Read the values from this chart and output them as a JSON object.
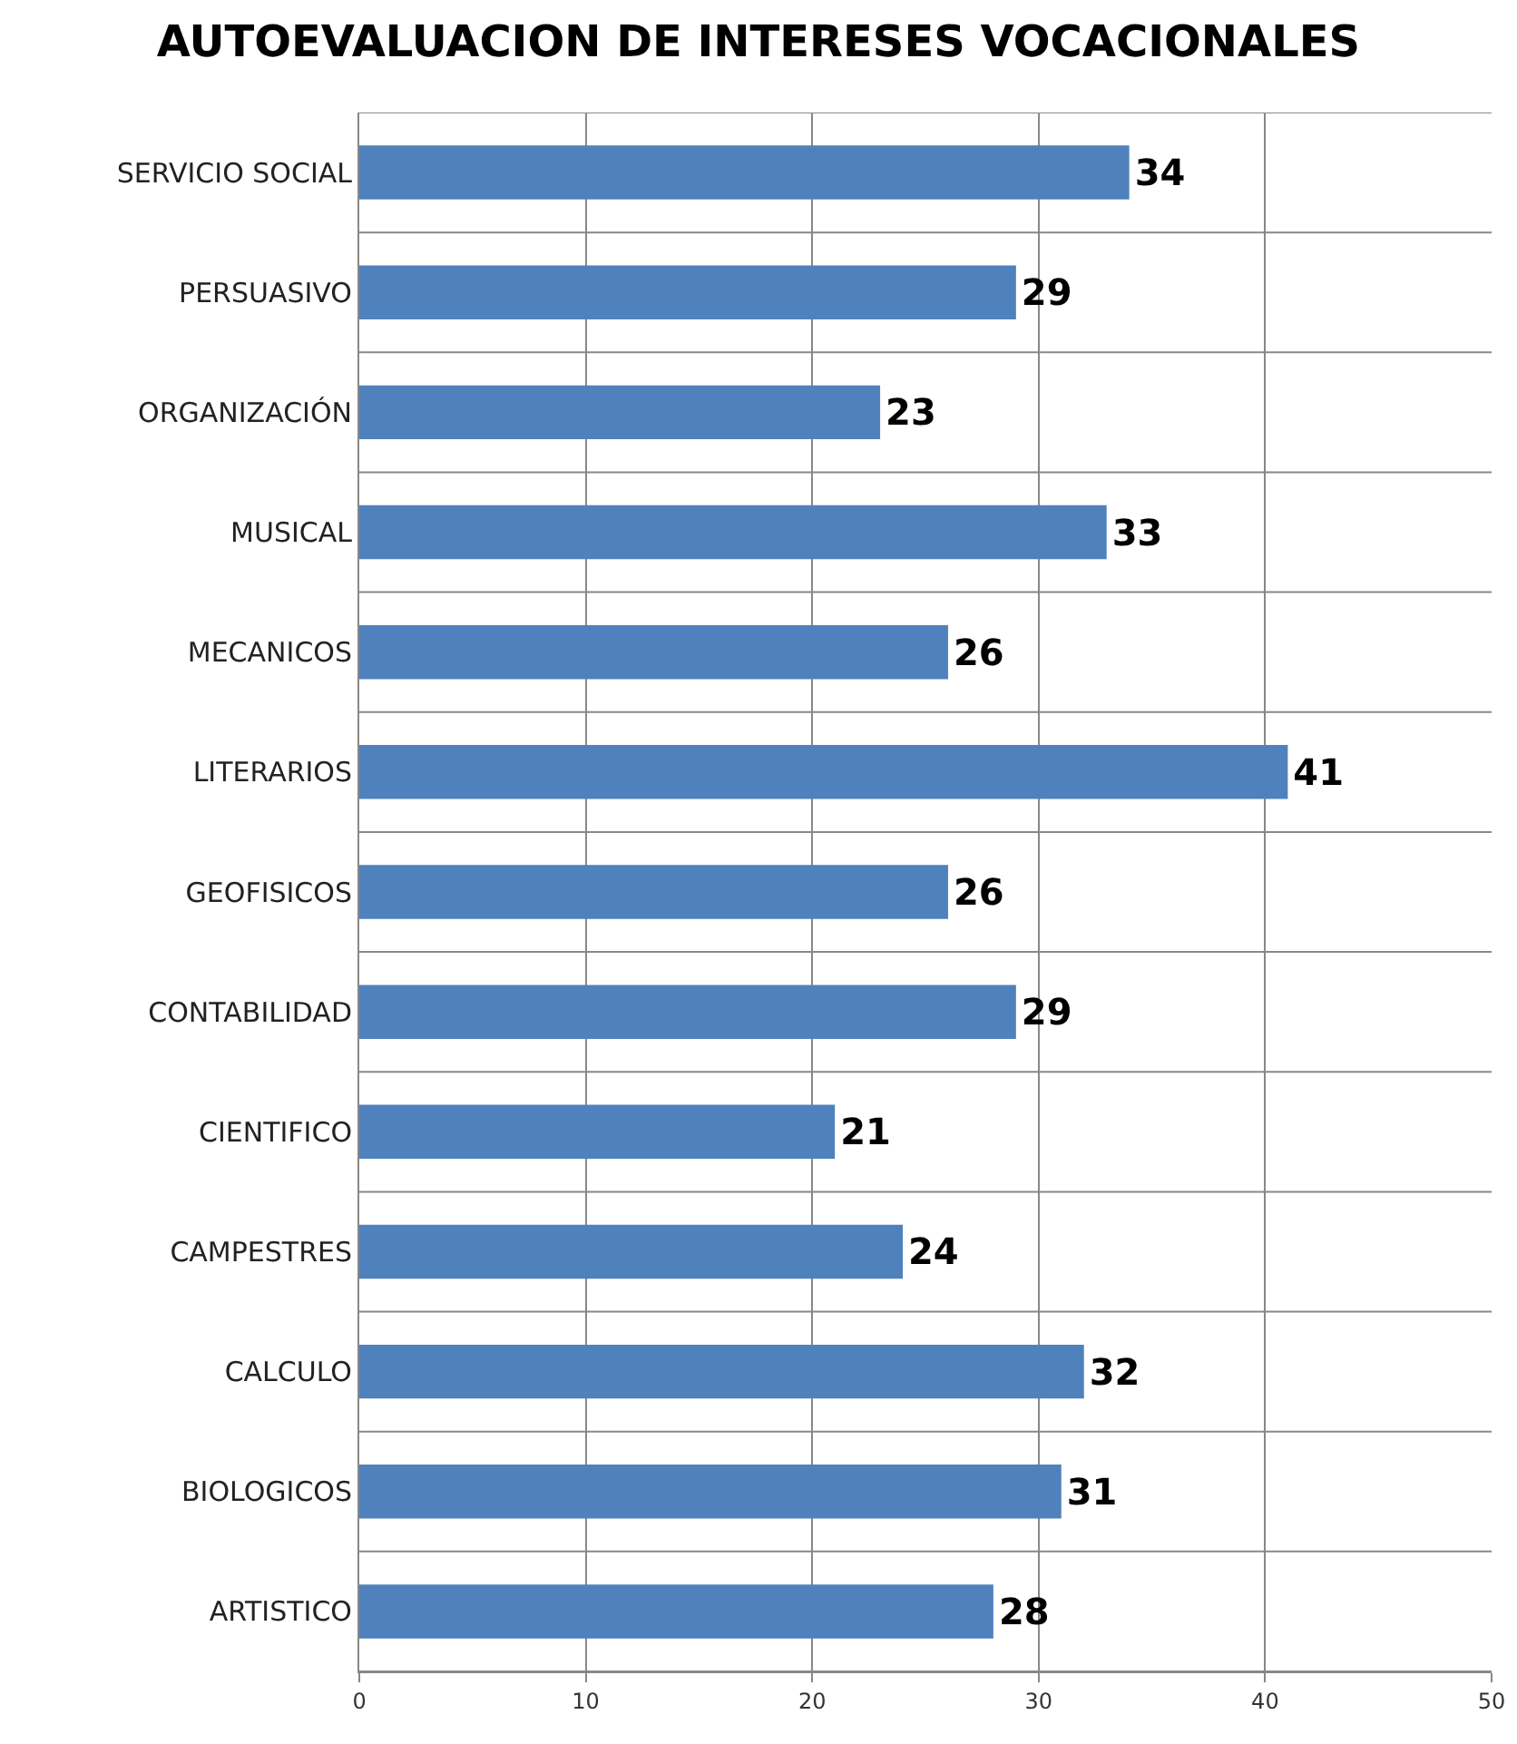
{
  "chart_data": {
    "type": "bar",
    "orientation": "horizontal",
    "title": "AUTOEVALUACION DE INTERESES VOCACIONALES",
    "categories": [
      "SERVICIO SOCIAL",
      "PERSUASIVO",
      "ORGANIZACIÓN",
      "MUSICAL",
      "MECANICOS",
      "LITERARIOS",
      "GEOFISICOS",
      "CONTABILIDAD",
      "CIENTIFICO",
      "CAMPESTRES",
      "CALCULO",
      "BIOLOGICOS",
      "ARTISTICO"
    ],
    "values": [
      34,
      29,
      23,
      33,
      26,
      41,
      26,
      29,
      21,
      24,
      32,
      31,
      28
    ],
    "color": "#4f81bd",
    "xlim": [
      0,
      50
    ],
    "xticks": [
      0,
      10,
      20,
      30,
      40,
      50
    ],
    "grid": true,
    "data_labels": true
  }
}
